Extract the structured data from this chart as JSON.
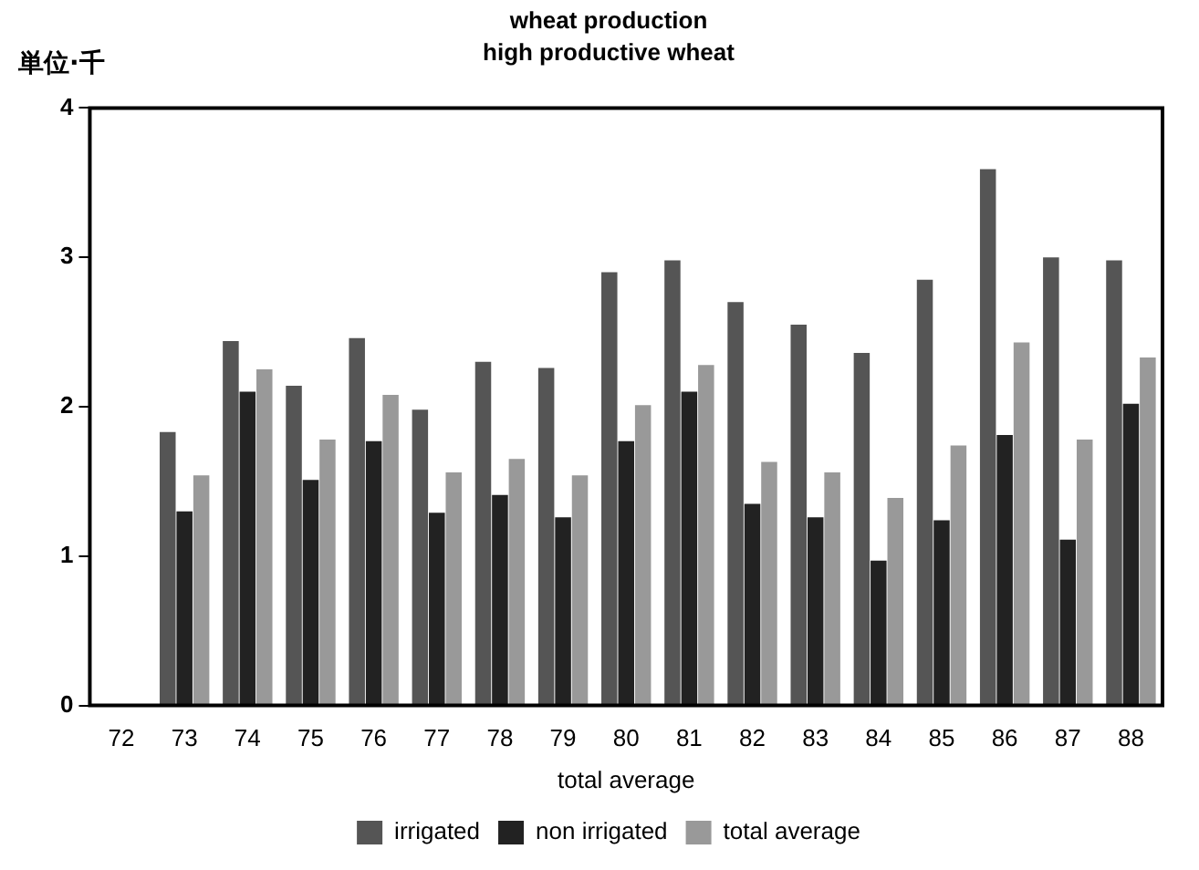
{
  "chart_data": {
    "type": "bar",
    "title": "wheat production",
    "subtitle": "high productive wheat",
    "ylabel": "単位·千",
    "xlabel": "total average",
    "categories": [
      "72",
      "73",
      "74",
      "75",
      "76",
      "77",
      "78",
      "79",
      "80",
      "81",
      "82",
      "83",
      "84",
      "85",
      "86",
      "87",
      "88"
    ],
    "series": [
      {
        "name": "irrigated",
        "color": "#555555",
        "values": [
          null,
          1.83,
          2.44,
          2.14,
          2.46,
          1.98,
          2.3,
          2.26,
          2.9,
          2.98,
          2.7,
          2.55,
          2.36,
          2.85,
          3.59,
          3.0,
          2.98
        ]
      },
      {
        "name": "non irrigated",
        "color": "#222222",
        "values": [
          null,
          1.3,
          2.1,
          1.51,
          1.77,
          1.29,
          1.41,
          1.26,
          1.77,
          2.1,
          1.35,
          1.26,
          0.97,
          1.24,
          1.81,
          1.11,
          2.02
        ]
      },
      {
        "name": "total average",
        "color": "#999999",
        "values": [
          null,
          1.54,
          2.25,
          1.78,
          2.08,
          1.56,
          1.65,
          1.54,
          2.01,
          2.28,
          1.63,
          1.56,
          1.39,
          1.74,
          2.43,
          1.78,
          2.33
        ]
      }
    ],
    "ylim": [
      0,
      4
    ],
    "yticks": [
      0,
      1,
      2,
      3,
      4
    ],
    "grid": false,
    "legend": "bottom"
  }
}
